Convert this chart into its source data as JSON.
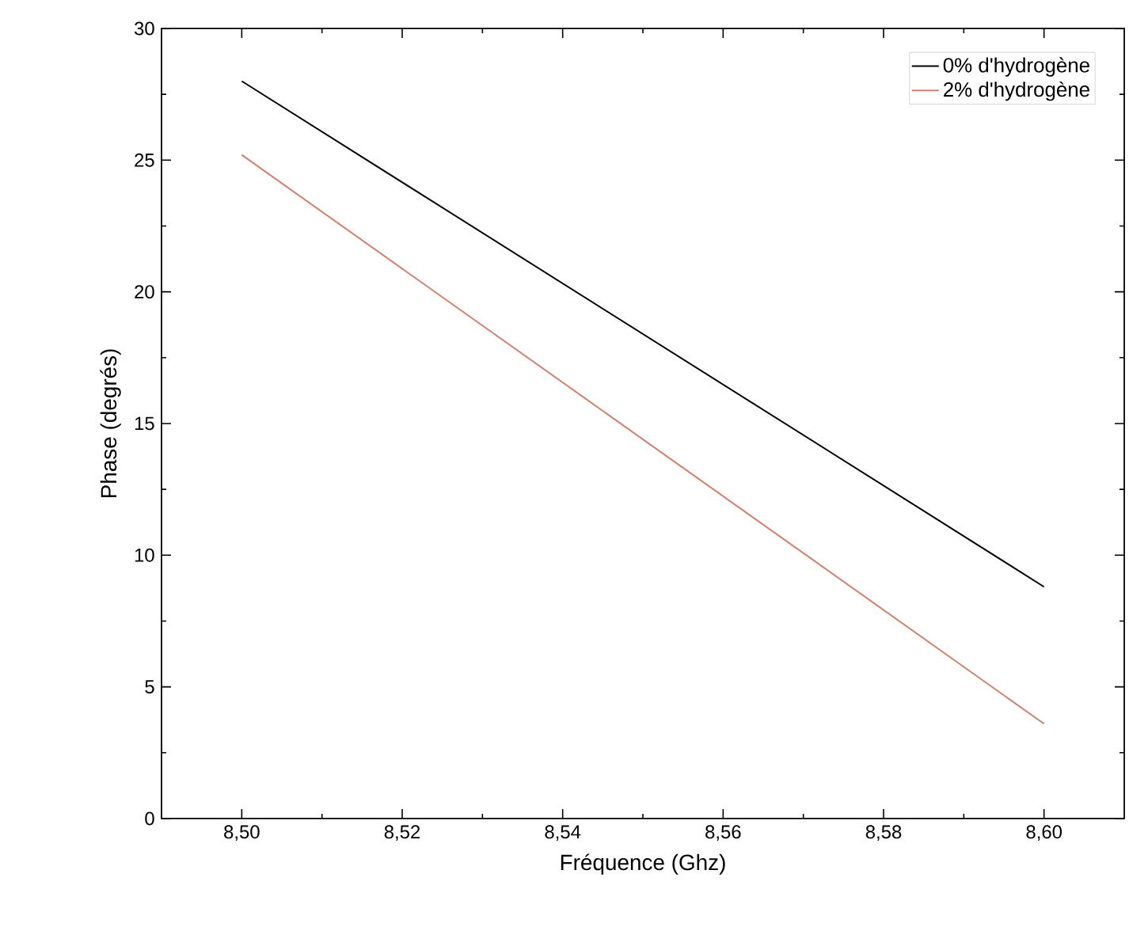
{
  "chart_data": {
    "type": "line",
    "xlabel": "Fréquence (Ghz)",
    "ylabel": "Phase (degrés)",
    "x": [
      8.5,
      8.6
    ],
    "series": [
      {
        "name": "0% d'hydrogène",
        "color": "#000000",
        "values": [
          28.0,
          8.8
        ]
      },
      {
        "name": "2% d'hydrogène",
        "color": "#d0806c",
        "values": [
          25.2,
          3.6
        ]
      }
    ],
    "xlim": [
      8.49,
      8.61
    ],
    "ylim": [
      0,
      30
    ],
    "xticks": [
      {
        "value": 8.5,
        "label": "8,50"
      },
      {
        "value": 8.52,
        "label": "8,52"
      },
      {
        "value": 8.54,
        "label": "8,54"
      },
      {
        "value": 8.56,
        "label": "8,56"
      },
      {
        "value": 8.58,
        "label": "8,58"
      },
      {
        "value": 8.6,
        "label": "8,60"
      }
    ],
    "yticks": [
      0,
      5,
      10,
      15,
      20,
      25,
      30
    ],
    "legend": "top right",
    "grid": false,
    "marker": "none",
    "line_style": "solid"
  }
}
